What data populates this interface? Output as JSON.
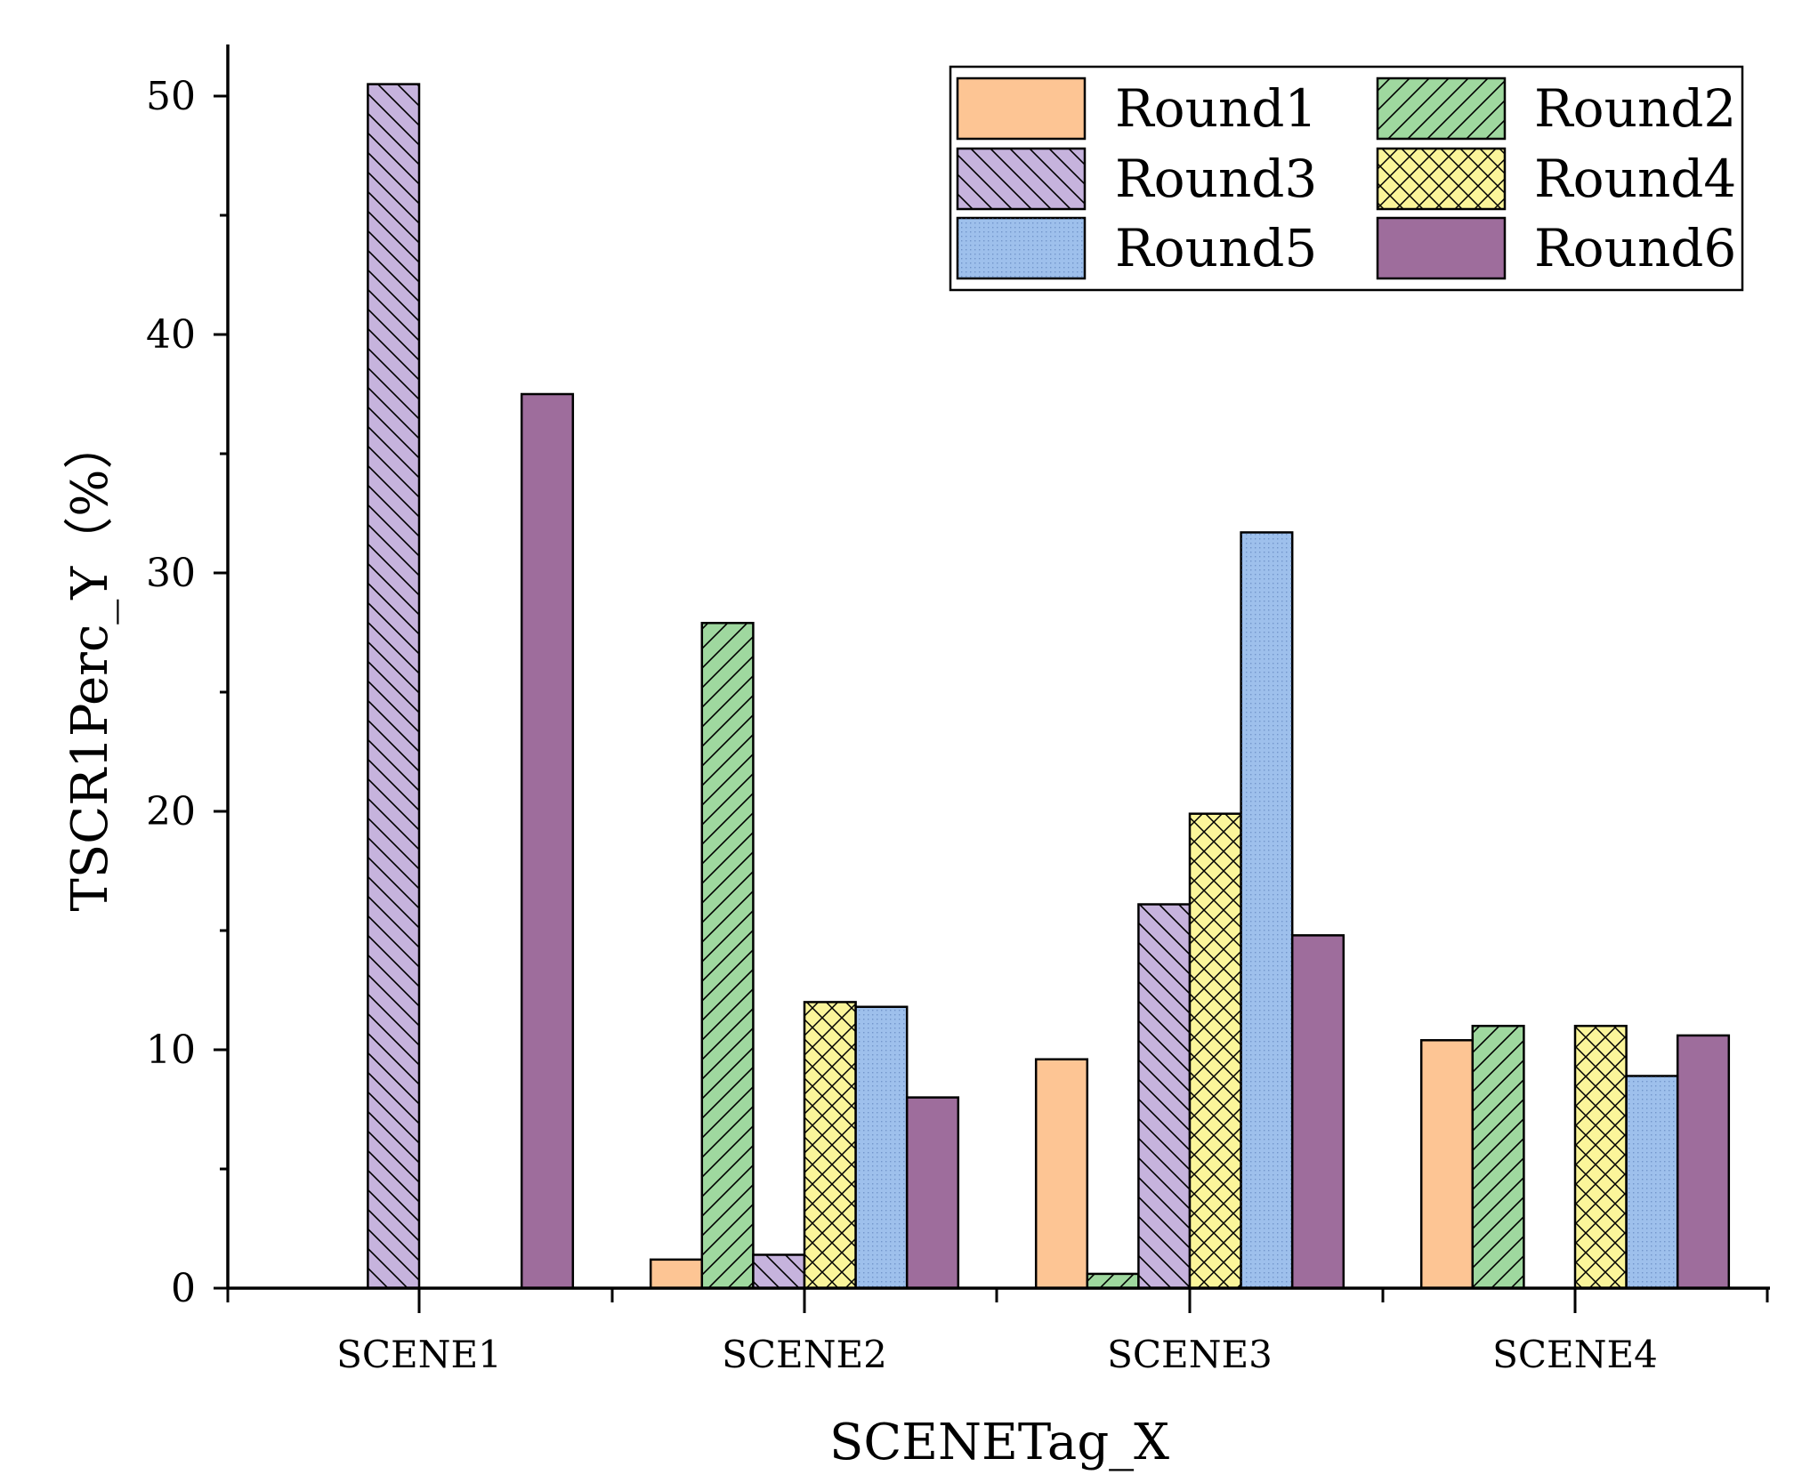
{
  "chart_data": {
    "type": "bar",
    "title": "",
    "xlabel": "SCENETag_X",
    "ylabel": "TSCR1Perc_Y（%）",
    "ylim": [
      0,
      52
    ],
    "yticks": [
      0,
      10,
      20,
      30,
      40,
      50
    ],
    "ytick_labels": [
      "0",
      "10",
      "20",
      "30",
      "40",
      "50"
    ],
    "categories": [
      "SCENE1",
      "SCENE2",
      "SCENE3",
      "SCENE4"
    ],
    "legend_position": "top-right",
    "legend_columns": 2,
    "series": [
      {
        "name": "Round1",
        "color": "#FDC594",
        "pattern": "solid",
        "values": [
          0,
          1.2,
          9.6,
          10.4
        ]
      },
      {
        "name": "Round2",
        "color": "#9FD89F",
        "pattern": "diagonal-right",
        "values": [
          0,
          27.9,
          0.6,
          11.0
        ]
      },
      {
        "name": "Round3",
        "color": "#C6B3DD",
        "pattern": "diagonal-left",
        "values": [
          50.5,
          1.4,
          16.1,
          0
        ]
      },
      {
        "name": "Round4",
        "color": "#FBF59A",
        "pattern": "crosshatch",
        "values": [
          0,
          12.0,
          19.9,
          11.0
        ]
      },
      {
        "name": "Round5",
        "color": "#9EC0EC",
        "pattern": "dots",
        "values": [
          0,
          11.8,
          31.7,
          8.9
        ]
      },
      {
        "name": "Round6",
        "color": "#9E6D9C",
        "pattern": "solid",
        "values": [
          37.5,
          8.0,
          14.8,
          10.6
        ]
      }
    ]
  }
}
